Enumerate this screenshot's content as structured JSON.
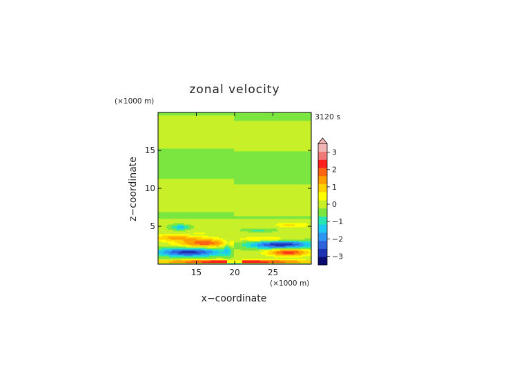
{
  "chart_data": {
    "type": "heatmap",
    "title": "zonal velocity",
    "xlabel": "x−coordinate",
    "ylabel": "z−coordinate",
    "x_unit": "(×1000 m)",
    "y_unit": "(×1000 m)",
    "time_label": "3120 s",
    "xlim": [
      10,
      30
    ],
    "ylim": [
      0,
      20
    ],
    "x_ticks": [
      15,
      20,
      25
    ],
    "y_ticks": [
      5,
      10,
      15
    ],
    "colorbar": {
      "tick_labels": [
        "3",
        "2",
        "1",
        "0",
        "−1",
        "−2",
        "−3"
      ],
      "tick_values": [
        3,
        2,
        1,
        0,
        -1,
        -2,
        -3
      ],
      "levels": [
        -3.5,
        -3,
        -2.5,
        -2,
        -1.5,
        -1,
        -0.5,
        0,
        0.5,
        1,
        1.5,
        2,
        2.5,
        3,
        3.5
      ],
      "colors": [
        "#0a0a70",
        "#1e32b4",
        "#2d64dc",
        "#2d96f0",
        "#1ec8f0",
        "#28e6b4",
        "#7ce640",
        "#c8f028",
        "#ffff00",
        "#ffd200",
        "#ffa000",
        "#ff6414",
        "#ff1e1e",
        "#f07878",
        "#f5b4b4"
      ],
      "extend": "max"
    }
  }
}
